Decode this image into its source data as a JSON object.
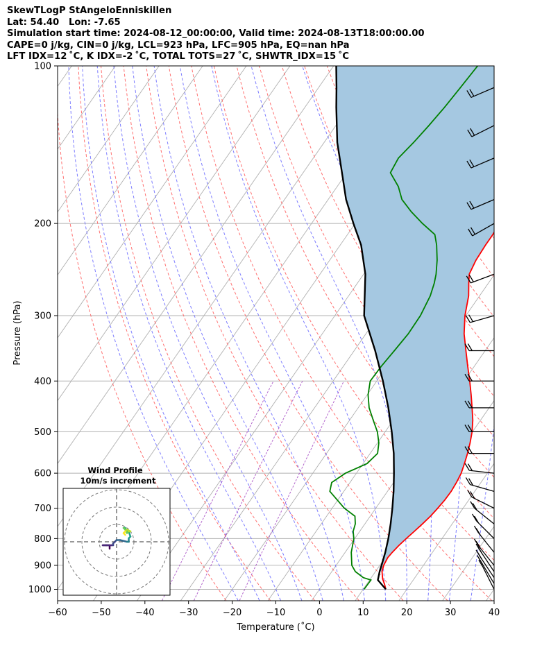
{
  "header": {
    "line1": "SkewTLogP StAngeloEnniskillen",
    "line2": "Lat: 54.40   Lon: -7.65",
    "line3": "Simulation start time: 2024-08-12_00:00:00, Valid time: 2024-08-13T18:00:00.00",
    "line4": "CAPE=0 j/kg, CIN=0 j/kg, LCL=923 hPa, LFC=905 hPa, EQ=nan hPa",
    "line5": "LFT IDX=12 ˚C, K IDX=-2 ˚C, TOTAL TOTS=27 ˚C, SHWTR_IDX=15 ˚C"
  },
  "chart_data": {
    "type": "line",
    "subtype": "skew-T log-P",
    "xlabel": "Temperature (˚C)",
    "ylabel": "Pressure (hPa)",
    "xlim": [
      -60,
      40
    ],
    "ylim": [
      1050,
      100
    ],
    "y_scale": "log",
    "x_ticks": [
      "−60",
      "−50",
      "−40",
      "−30",
      "−20",
      "−10",
      "0",
      "10",
      "20",
      "30",
      "40"
    ],
    "y_ticks": [
      "100",
      "200",
      "300",
      "400",
      "500",
      "600",
      "700",
      "800",
      "900",
      "1000"
    ],
    "grid": true,
    "colors": {
      "temperature": "#ff0000",
      "dewpoint": "#008000",
      "parcel": "#000000",
      "cape_fill": "#a5c8e1",
      "dry_adiabat": "#ff6060",
      "moist_adiabat": "#6f6fff",
      "isotherm": "#b0b0b0",
      "mixing_ratio": "#a040c0"
    },
    "series": [
      {
        "key": "temperature",
        "points": [
          [
            15.2,
            1000
          ],
          [
            14.2,
            980
          ],
          [
            12.8,
            955
          ],
          [
            11.5,
            925
          ],
          [
            10.9,
            900
          ],
          [
            10.6,
            870
          ],
          [
            10.8,
            850
          ],
          [
            11.2,
            825
          ],
          [
            11.8,
            800
          ],
          [
            12.5,
            775
          ],
          [
            13.2,
            750
          ],
          [
            13.8,
            725
          ],
          [
            14.2,
            700
          ],
          [
            14.5,
            675
          ],
          [
            14.6,
            650
          ],
          [
            14.4,
            625
          ],
          [
            14.0,
            600
          ],
          [
            13.2,
            575
          ],
          [
            12.3,
            550
          ],
          [
            11.2,
            525
          ],
          [
            9.9,
            500
          ],
          [
            8.2,
            475
          ],
          [
            6.1,
            450
          ],
          [
            3.8,
            425
          ],
          [
            1.3,
            400
          ],
          [
            -1.5,
            375
          ],
          [
            -4.4,
            350
          ],
          [
            -7.5,
            325
          ],
          [
            -10.2,
            300
          ],
          [
            -12.5,
            275
          ],
          [
            -14.5,
            260
          ],
          [
            -15.8,
            250
          ],
          [
            -16.5,
            235
          ],
          [
            -16.7,
            220
          ],
          [
            -16.7,
            210
          ],
          [
            -17.0,
            200
          ],
          [
            -18.4,
            190
          ],
          [
            -19.8,
            180
          ],
          [
            -21.3,
            170
          ],
          [
            -23.2,
            160
          ],
          [
            -25.4,
            150
          ],
          [
            -27.6,
            140
          ],
          [
            -30.0,
            130
          ],
          [
            -32.0,
            120
          ],
          [
            -34.3,
            110
          ],
          [
            -37.0,
            100
          ]
        ]
      },
      {
        "key": "dewpoint",
        "points": [
          [
            10.2,
            1000
          ],
          [
            10.3,
            960
          ],
          [
            8.2,
            950
          ],
          [
            5.4,
            925
          ],
          [
            3.6,
            900
          ],
          [
            1.4,
            850
          ],
          [
            -0.2,
            800
          ],
          [
            -1.5,
            775
          ],
          [
            -2.2,
            750
          ],
          [
            -3.5,
            725
          ],
          [
            -7.2,
            700
          ],
          [
            -13.2,
            650
          ],
          [
            -14.2,
            625
          ],
          [
            -12.5,
            600
          ],
          [
            -9.1,
            575
          ],
          [
            -8.3,
            550
          ],
          [
            -9.7,
            525
          ],
          [
            -11.8,
            500
          ],
          [
            -14.6,
            475
          ],
          [
            -17.5,
            450
          ],
          [
            -19.8,
            425
          ],
          [
            -21.5,
            400
          ],
          [
            -21.3,
            375
          ],
          [
            -20.8,
            350
          ],
          [
            -20.3,
            325
          ],
          [
            -20.4,
            300
          ],
          [
            -21.3,
            275
          ],
          [
            -22.4,
            260
          ],
          [
            -23.4,
            250
          ],
          [
            -25.4,
            235
          ],
          [
            -27.9,
            220
          ],
          [
            -30.0,
            210
          ],
          [
            -34.6,
            200
          ],
          [
            -39.0,
            190
          ],
          [
            -43.1,
            180
          ],
          [
            -46.0,
            170
          ],
          [
            -50.0,
            160
          ],
          [
            -50.5,
            150
          ],
          [
            -49.5,
            140
          ],
          [
            -48.7,
            130
          ],
          [
            -48.0,
            120
          ],
          [
            -47.5,
            110
          ],
          [
            -47.0,
            100
          ]
        ]
      },
      {
        "key": "parcel",
        "points": [
          [
            15.2,
            1000
          ],
          [
            11.9,
            960
          ],
          [
            10.9,
            923
          ],
          [
            10.4,
            900
          ],
          [
            9.2,
            850
          ],
          [
            7.7,
            800
          ],
          [
            5.9,
            750
          ],
          [
            3.8,
            700
          ],
          [
            1.4,
            650
          ],
          [
            -1.4,
            600
          ],
          [
            -4.6,
            550
          ],
          [
            -8.5,
            500
          ],
          [
            -13.1,
            450
          ],
          [
            -18.6,
            400
          ],
          [
            -25.2,
            350
          ],
          [
            -33.3,
            300
          ],
          [
            -39.6,
            250
          ],
          [
            -45.2,
            220
          ],
          [
            -50.4,
            200
          ],
          [
            -55.9,
            180
          ],
          [
            -61.1,
            160
          ],
          [
            -67.0,
            140
          ],
          [
            -72.8,
            120
          ],
          [
            -75.9,
            110
          ],
          [
            -79.4,
            100
          ]
        ]
      }
    ],
    "winds": [
      {
        "p": 1000,
        "u": -2,
        "v": 4
      },
      {
        "p": 975,
        "u": -3,
        "v": 5
      },
      {
        "p": 950,
        "u": -4,
        "v": 6
      },
      {
        "p": 925,
        "u": -4,
        "v": 6
      },
      {
        "p": 900,
        "u": -4,
        "v": 5
      },
      {
        "p": 850,
        "u": -4,
        "v": 5
      },
      {
        "p": 800,
        "u": -5,
        "v": 5
      },
      {
        "p": 750,
        "u": -5,
        "v": 4
      },
      {
        "p": 700,
        "u": -6,
        "v": 3
      },
      {
        "p": 650,
        "u": -7,
        "v": 2
      },
      {
        "p": 600,
        "u": -9,
        "v": 1
      },
      {
        "p": 550,
        "u": -8,
        "v": 0
      },
      {
        "p": 500,
        "u": -8,
        "v": 0
      },
      {
        "p": 450,
        "u": -7,
        "v": 0
      },
      {
        "p": 400,
        "u": -7,
        "v": 0
      },
      {
        "p": 350,
        "u": -8,
        "v": 0
      },
      {
        "p": 300,
        "u": -7,
        "v": -2
      },
      {
        "p": 250,
        "u": -8,
        "v": -3
      },
      {
        "p": 200,
        "u": -7,
        "v": -4
      },
      {
        "p": 180,
        "u": -7,
        "v": -3
      },
      {
        "p": 150,
        "u": -7,
        "v": -3
      },
      {
        "p": 130,
        "u": -8,
        "v": -4
      },
      {
        "p": 110,
        "u": -7,
        "v": -3
      }
    ],
    "hodograph": {
      "title": "Wind Profile",
      "subtitle": "10m/s increment",
      "rings": [
        10,
        20,
        30
      ],
      "points": [
        [
          -4,
          -4
        ],
        [
          -4,
          -2
        ],
        [
          -6,
          -2
        ],
        [
          -8,
          -2
        ],
        [
          -6,
          -2
        ],
        [
          -3,
          -2
        ],
        [
          -2,
          -2
        ],
        [
          -2,
          -1
        ],
        [
          -1,
          0
        ],
        [
          0,
          1
        ],
        [
          2,
          1
        ],
        [
          6,
          0
        ],
        [
          7,
          0
        ],
        [
          7,
          1
        ],
        [
          7,
          2
        ],
        [
          8,
          3
        ],
        [
          7,
          6
        ],
        [
          6,
          6
        ],
        [
          5,
          8
        ],
        [
          4,
          8
        ],
        [
          5,
          7
        ],
        [
          6,
          5
        ],
        [
          7,
          6
        ],
        [
          8,
          6
        ],
        [
          6,
          7
        ],
        [
          5,
          6
        ],
        [
          4,
          5
        ],
        [
          5,
          4
        ]
      ]
    }
  }
}
